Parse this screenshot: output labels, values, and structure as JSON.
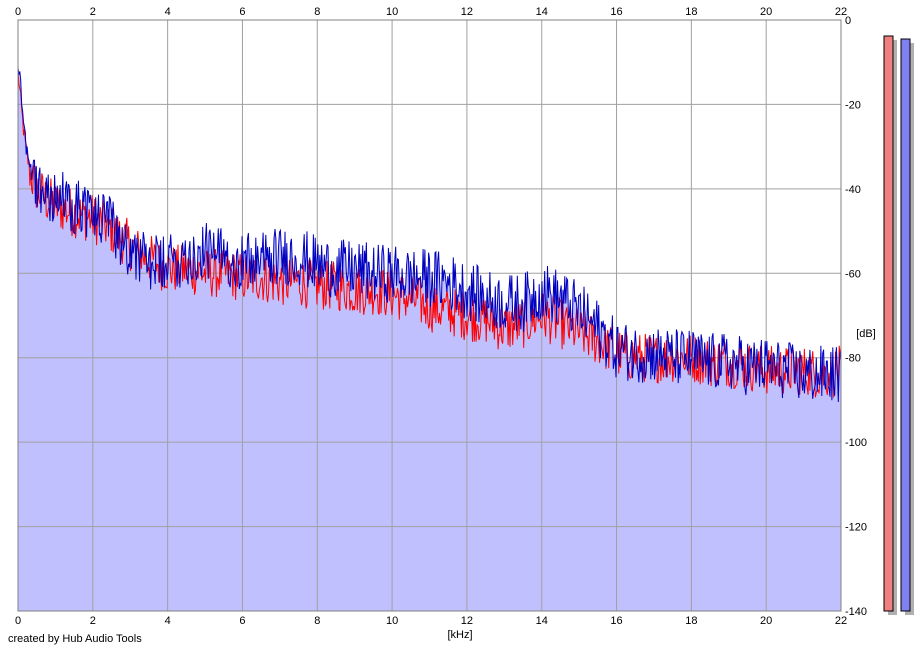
{
  "credit": "created by Hub Audio Tools",
  "chart_data": {
    "type": "area",
    "xlabel": "[kHz]",
    "ylabel": "[dB]",
    "xlim": [
      0,
      22
    ],
    "ylim": [
      -140,
      0
    ],
    "x_ticks": [
      0,
      2,
      4,
      6,
      8,
      10,
      12,
      14,
      16,
      18,
      20,
      22
    ],
    "y_ticks": [
      0,
      -20,
      -40,
      -60,
      -80,
      -100,
      -120,
      -140
    ],
    "y_tick_labels": [
      "0",
      "-20",
      "-40",
      "-60",
      "-80",
      "-100",
      "-120",
      "-140"
    ],
    "x_tick_labels": [
      "0",
      "2",
      "4",
      "6",
      "8",
      "10",
      "12",
      "14",
      "16",
      "18",
      "20",
      "22"
    ],
    "grid": true,
    "colors": {
      "red_series": "#ff0000",
      "blue_series": "#0000c0",
      "fill": "#c0c0ff",
      "grid": "#a0a0a0",
      "red_meter": "#f08080",
      "blue_meter": "#8080f0"
    },
    "series": [
      {
        "color": "#ff0000",
        "x": [
          0,
          0.1,
          0.2,
          0.3,
          0.4,
          0.5,
          0.7,
          1.0,
          1.3,
          1.6,
          2.0,
          2.4,
          2.8,
          3.2,
          3.6,
          4.0,
          4.5,
          5.0,
          5.5,
          6.0,
          6.5,
          7.0,
          7.5,
          8.0,
          8.5,
          9.0,
          9.5,
          10.0,
          10.5,
          11.0,
          11.5,
          12.0,
          12.5,
          13.0,
          13.5,
          14.0,
          14.5,
          15.0,
          15.5,
          16.0,
          16.5,
          17.0,
          17.5,
          18.0,
          18.5,
          19.0,
          19.5,
          20.0,
          20.5,
          21.0,
          21.5,
          22.0
        ],
        "y": [
          -12,
          -22,
          -30,
          -35,
          -38,
          -40,
          -42,
          -44,
          -45,
          -46,
          -47,
          -49,
          -52,
          -55,
          -57,
          -59,
          -59,
          -60,
          -60,
          -61,
          -61,
          -62,
          -62,
          -63,
          -63,
          -64,
          -64,
          -65,
          -66,
          -68,
          -69,
          -70,
          -71,
          -73,
          -72,
          -70,
          -72,
          -74,
          -76,
          -79,
          -80,
          -80,
          -80,
          -80,
          -81,
          -81,
          -82,
          -83,
          -83,
          -83,
          -84,
          -83
        ]
      },
      {
        "color": "#0000c0",
        "x": [
          0,
          0.1,
          0.2,
          0.3,
          0.4,
          0.5,
          0.7,
          1.0,
          1.3,
          1.6,
          2.0,
          2.4,
          2.8,
          3.2,
          3.6,
          4.0,
          4.5,
          5.0,
          5.5,
          6.0,
          6.5,
          7.0,
          7.5,
          8.0,
          8.5,
          9.0,
          9.5,
          10.0,
          10.5,
          11.0,
          11.5,
          12.0,
          12.5,
          13.0,
          13.5,
          14.0,
          14.5,
          15.0,
          15.5,
          16.0,
          16.5,
          17.0,
          17.5,
          18.0,
          18.5,
          19.0,
          19.5,
          20.0,
          20.5,
          21.0,
          21.5,
          22.0
        ],
        "y": [
          -10,
          -18,
          -28,
          -34,
          -37,
          -39,
          -41,
          -42,
          -43,
          -44,
          -46,
          -48,
          -52,
          -56,
          -58,
          -58,
          -56,
          -55,
          -56,
          -57,
          -57,
          -56,
          -56,
          -58,
          -59,
          -59,
          -60,
          -60,
          -61,
          -61,
          -62,
          -64,
          -66,
          -67,
          -67,
          -64,
          -66,
          -69,
          -73,
          -78,
          -79,
          -79,
          -80,
          -80,
          -81,
          -81,
          -82,
          -82,
          -83,
          -84,
          -84,
          -84
        ]
      }
    ]
  }
}
